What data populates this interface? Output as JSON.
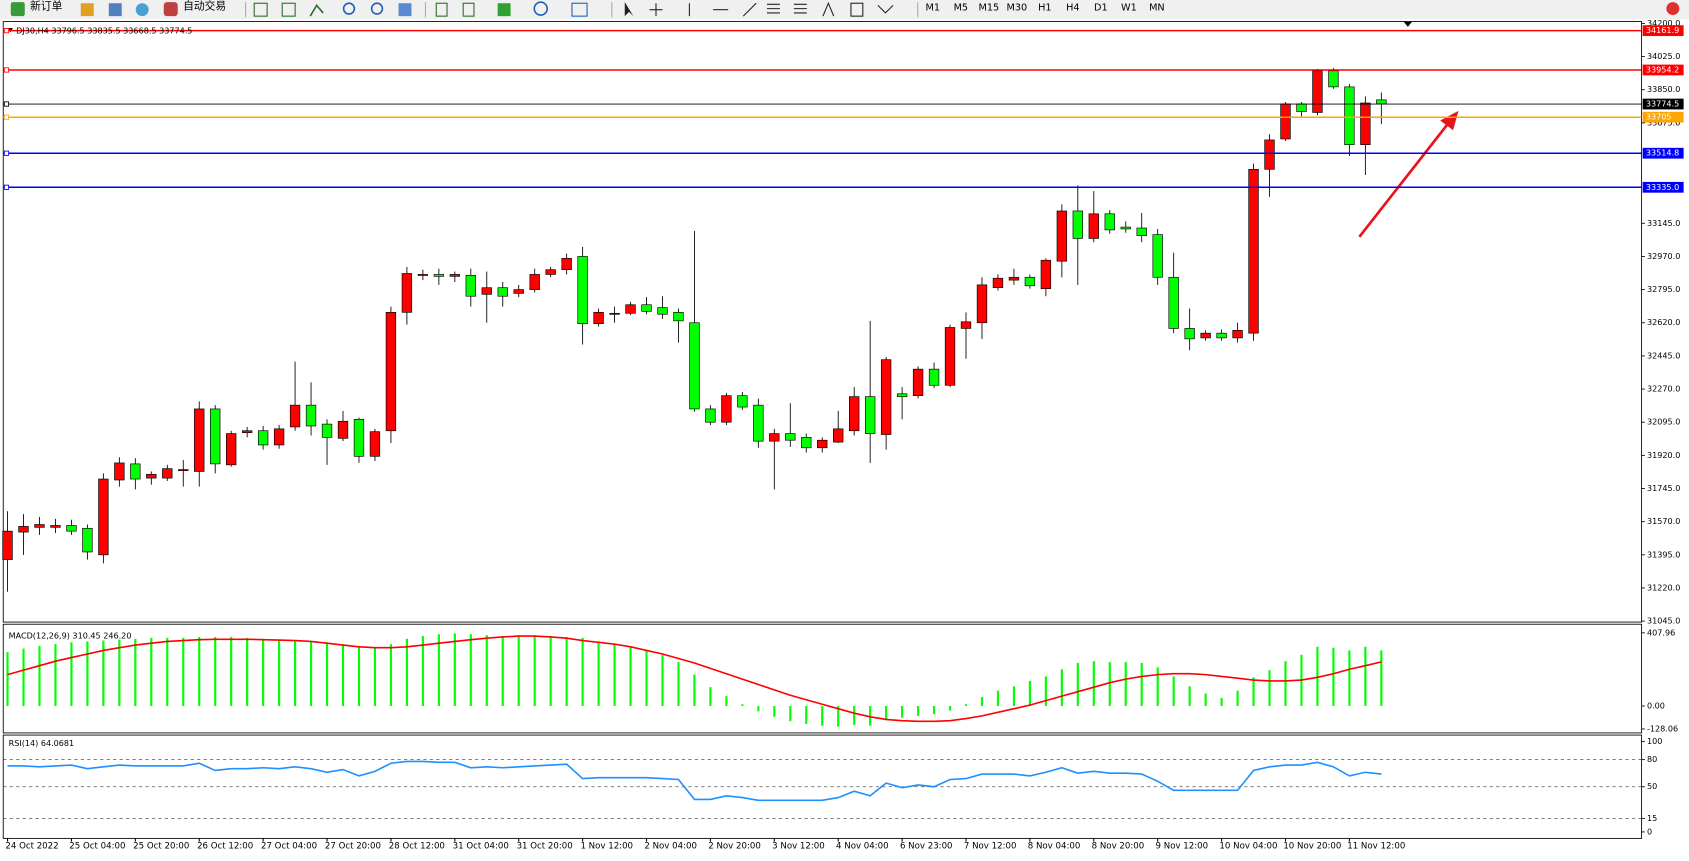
{
  "toolbar": {
    "new_order": "新订单",
    "auto_trading": "自动交易",
    "timeframes": [
      "M1",
      "M5",
      "M15",
      "M30",
      "H1",
      "H4",
      "D1",
      "W1",
      "MN"
    ]
  },
  "chart_data": [
    {
      "type": "candlestick",
      "title": "DJ30,H4  33796.5 33835.5 33668.5 33774.5",
      "up_color": "#ff0000",
      "down_color": "#00ff00",
      "categories": [
        "24 Oct 2022",
        null,
        null,
        null,
        "25 Oct 04:00",
        null,
        null,
        null,
        "25 Oct 20:00",
        null,
        null,
        null,
        "26 Oct 12:00",
        null,
        null,
        null,
        "27 Oct 04:00",
        null,
        null,
        null,
        "27 Oct 20:00",
        null,
        null,
        null,
        "28 Oct 12:00",
        null,
        null,
        null,
        "31 Oct 04:00",
        null,
        null,
        null,
        "31 Oct 20:00",
        null,
        null,
        null,
        "1 Nov 12:00",
        null,
        null,
        null,
        "2 Nov 04:00",
        null,
        null,
        null,
        "2 Nov 20:00",
        null,
        null,
        null,
        "3 Nov 12:00",
        null,
        null,
        null,
        "4 Nov 04:00",
        null,
        null,
        null,
        "6 Nov 23:00",
        null,
        null,
        null,
        "7 Nov 12:00",
        null,
        null,
        null,
        "8 Nov 04:00",
        null,
        null,
        null,
        "8 Nov 20:00",
        null,
        null,
        null,
        "9 Nov 12:00",
        null,
        null,
        null,
        "10 Nov 04:00",
        null,
        null,
        null,
        "10 Nov 20:00",
        null,
        null,
        null,
        "11 Nov 12:00",
        null,
        null
      ],
      "open": [
        31370,
        31515,
        31540,
        31540,
        31550,
        31535,
        31395,
        31790,
        31875,
        31800,
        31800,
        31840,
        31835,
        32165,
        31870,
        32040,
        32050,
        31975,
        32070,
        32185,
        32085,
        32010,
        32110,
        31915,
        32050,
        32675,
        32870,
        32875,
        32865,
        32870,
        32770,
        32805,
        32775,
        32795,
        32875,
        32900,
        32970,
        32615,
        32665,
        32670,
        32715,
        32700,
        32675,
        32620,
        32165,
        32095,
        32235,
        32185,
        31995,
        32035,
        32015,
        31960,
        31990,
        32050,
        32230,
        32030,
        32245,
        32235,
        32375,
        32290,
        32590,
        32620,
        32805,
        32845,
        32860,
        32800,
        32945,
        33210,
        33065,
        33195,
        33125,
        33120,
        33085,
        32860,
        32590,
        32540,
        32565,
        32540,
        32565,
        33430,
        33590,
        33775,
        33730,
        33950,
        33865,
        33560,
        33796.5
      ],
      "high": [
        31625,
        31610,
        31595,
        31585,
        31580,
        31555,
        31825,
        31910,
        31905,
        31835,
        31870,
        31895,
        32205,
        32185,
        32050,
        32070,
        32075,
        32080,
        32415,
        32305,
        32110,
        32155,
        32120,
        32060,
        32705,
        32915,
        32900,
        32905,
        32890,
        32905,
        32890,
        32835,
        32820,
        32905,
        32915,
        32985,
        33020,
        32695,
        32705,
        32730,
        32755,
        32760,
        32695,
        33105,
        32185,
        32250,
        32255,
        32220,
        32060,
        32195,
        32035,
        32015,
        32155,
        32280,
        32630,
        32440,
        32280,
        32390,
        32410,
        32610,
        32675,
        32860,
        32875,
        32905,
        32875,
        32960,
        33245,
        33345,
        33315,
        33215,
        33155,
        33200,
        33115,
        32990,
        32695,
        32580,
        32585,
        32620,
        33460,
        33615,
        33785,
        33785,
        33960,
        33965,
        33880,
        33815,
        33835.5
      ],
      "low": [
        31200,
        31395,
        31500,
        31510,
        31500,
        31370,
        31350,
        31755,
        31740,
        31765,
        31785,
        31755,
        31755,
        31825,
        31860,
        32015,
        31950,
        31955,
        32050,
        32025,
        31870,
        31995,
        31880,
        31890,
        31985,
        32610,
        32845,
        32820,
        32835,
        32705,
        32620,
        32705,
        32755,
        32780,
        32860,
        32875,
        32505,
        32600,
        32620,
        32660,
        32665,
        32640,
        32515,
        32150,
        32080,
        32080,
        32160,
        31960,
        31740,
        31965,
        31935,
        31935,
        31985,
        32025,
        31880,
        31950,
        32110,
        32220,
        32275,
        32280,
        32430,
        32535,
        32790,
        32820,
        32800,
        32760,
        32860,
        32820,
        33045,
        33090,
        33095,
        33045,
        32820,
        32565,
        32475,
        32525,
        32525,
        32515,
        32525,
        33285,
        33580,
        33710,
        33715,
        33855,
        33500,
        33400,
        33668.5
      ],
      "close": [
        31520,
        31545,
        31555,
        31550,
        31520,
        31410,
        31795,
        31880,
        31795,
        31820,
        31850,
        31845,
        32165,
        31875,
        32035,
        32050,
        31975,
        32060,
        32185,
        32075,
        32015,
        32100,
        31915,
        32045,
        32675,
        32880,
        32875,
        32865,
        32875,
        32760,
        32805,
        32760,
        32795,
        32875,
        32900,
        32960,
        32615,
        32675,
        32670,
        32715,
        32680,
        32665,
        32630,
        32165,
        32095,
        32235,
        32175,
        31995,
        32035,
        32000,
        31960,
        32000,
        32060,
        32230,
        32035,
        32425,
        32230,
        32375,
        32290,
        32595,
        32625,
        32820,
        32855,
        32860,
        32815,
        32950,
        33210,
        33065,
        33195,
        33110,
        33115,
        33080,
        32860,
        32590,
        32535,
        32565,
        32540,
        32580,
        33430,
        33585,
        33775,
        33735,
        33950,
        33865,
        33560,
        33780,
        33774.5
      ],
      "ylim": [
        31040,
        34210
      ],
      "yticks": [
        {
          "value": 34200,
          "label": "34200.0"
        },
        {
          "value": 34025,
          "label": "34025.0"
        },
        {
          "value": 33850,
          "label": "33850.0"
        },
        {
          "value": 33675,
          "label": "33675.0"
        },
        {
          "value": 33145,
          "label": "33145.0"
        },
        {
          "value": 32970,
          "label": "32970.0"
        },
        {
          "value": 32795,
          "label": "32795.0"
        },
        {
          "value": 32620,
          "label": "32620.0"
        },
        {
          "value": 32445,
          "label": "32445.0"
        },
        {
          "value": 32270,
          "label": "32270.0"
        },
        {
          "value": 32095,
          "label": "32095.0"
        },
        {
          "value": 31920,
          "label": "31920.0"
        },
        {
          "value": 31745,
          "label": "31745.0"
        },
        {
          "value": 31570,
          "label": "31570.0"
        },
        {
          "value": 31395,
          "label": "31395.0"
        },
        {
          "value": 31220,
          "label": "31220.0"
        },
        {
          "value": 31045,
          "label": "31045.0"
        }
      ],
      "hlines": [
        {
          "value": 34161.9,
          "color": "#ff0000"
        },
        {
          "value": 33954.2,
          "color": "#ff0000"
        },
        {
          "value": 33774.5,
          "color": "#000000"
        },
        {
          "value": 33705,
          "color": "#ffa500"
        },
        {
          "value": 33514.8,
          "color": "#0000ff"
        },
        {
          "value": {
            "value": 33335.0,
            "label": "33335.0"
          },
          "color": "#0000ff"
        }
      ]
    },
    {
      "type": "macd",
      "title": "MACD(12,26,9) 310.45 246.20",
      "series": [
        {
          "color": "#00ff00",
          "values": [
            300,
            320,
            335,
            345,
            355,
            360,
            365,
            370,
            375,
            380,
            380,
            380,
            385,
            385,
            385,
            380,
            375,
            370,
            365,
            360,
            355,
            345,
            335,
            325,
            345,
            375,
            390,
            400,
            405,
            400,
            395,
            390,
            395,
            395,
            390,
            385,
            380,
            360,
            345,
            330,
            310,
            285,
            245,
            175,
            105,
            55,
            10,
            -30,
            -60,
            -85,
            -100,
            -110,
            -115,
            -105,
            -110,
            -80,
            -65,
            -55,
            -45,
            -25,
            10,
            50,
            85,
            110,
            140,
            165,
            205,
            240,
            250,
            245,
            245,
            240,
            215,
            165,
            110,
            70,
            45,
            85,
            160,
            200,
            250,
            285,
            330,
            325,
            310,
            330,
            310.45
          ]
        },
        {
          "color": "#ff0000",
          "values": [
            175,
            200,
            225,
            250,
            270,
            290,
            310,
            325,
            340,
            350,
            360,
            365,
            370,
            372,
            372,
            372,
            370,
            368,
            365,
            360,
            350,
            340,
            330,
            325,
            325,
            330,
            340,
            350,
            360,
            370,
            378,
            385,
            390,
            390,
            385,
            378,
            365,
            355,
            345,
            330,
            310,
            290,
            265,
            240,
            210,
            180,
            150,
            120,
            90,
            60,
            35,
            10,
            -15,
            -40,
            -60,
            -75,
            -82,
            -85,
            -85,
            -82,
            -70,
            -55,
            -35,
            -15,
            5,
            30,
            55,
            80,
            105,
            130,
            150,
            165,
            175,
            180,
            180,
            175,
            165,
            155,
            145,
            140,
            140,
            145,
            160,
            180,
            205,
            225,
            246.2
          ]
        }
      ],
      "ylim": [
        -144,
        450
      ],
      "yticks": [
        407.96,
        {
          "value": 0,
          "label": "0.00"
        },
        -128.06
      ]
    },
    {
      "type": "rsi",
      "title": "RSI(14) 64.0681",
      "series": [
        {
          "color": "#1e90ff",
          "values": [
            73,
            73,
            72,
            73,
            74,
            70,
            72,
            74,
            73,
            73,
            73,
            73,
            76,
            68,
            70,
            70,
            71,
            70,
            72,
            70,
            66,
            69,
            62,
            67,
            76,
            78,
            78,
            77,
            77,
            71,
            72,
            71,
            72,
            73,
            74,
            75,
            59,
            60,
            60,
            60,
            60,
            59,
            58,
            36,
            36,
            40,
            38,
            35,
            35,
            35,
            35,
            35,
            38,
            45,
            40,
            54,
            49,
            52,
            50,
            58,
            59,
            64,
            64,
            64,
            62,
            66,
            71,
            65,
            67,
            65,
            65,
            64,
            56,
            46,
            46,
            46,
            46,
            46,
            68,
            72,
            74,
            74,
            77,
            72,
            62,
            66,
            64.0681
          ]
        }
      ],
      "ylim": [
        0,
        100
      ],
      "yticks": [
        100,
        80,
        50,
        15,
        0
      ],
      "levels": [
        80,
        50,
        15
      ]
    }
  ]
}
